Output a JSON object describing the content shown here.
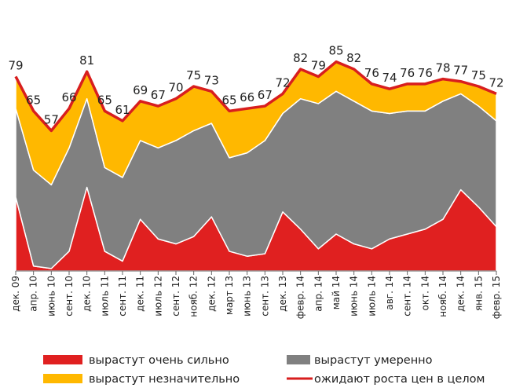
{
  "chart_data": {
    "type": "stacked_area",
    "categories": [
      "дек. 09",
      "апр. 10",
      "июнь 10",
      "сент. 10",
      "дек. 10",
      "июль 11",
      "сент. 11",
      "дек. 11",
      "июль 12",
      "сент. 12",
      "нояб. 12",
      "дек. 12",
      "март 13",
      "июнь 13",
      "сент. 13",
      "дек. 13",
      "февр. 14",
      "апр. 14",
      "май 14",
      "июнь 14",
      "июль 14",
      "авг. 14",
      "сент. 14",
      "окт. 14",
      "нояб. 14",
      "дек. 14",
      "янв. 15",
      "февр. 15"
    ],
    "ylim": [
      0,
      90
    ],
    "series": [
      {
        "name": "вырастут очень сильно",
        "color": "#e02020",
        "values": [
          30,
          2,
          1,
          8,
          34,
          8,
          4,
          21,
          13,
          11,
          14,
          22,
          8,
          6,
          7,
          24,
          17,
          9,
          15,
          11,
          9,
          13,
          15,
          17,
          21,
          33,
          26,
          18
        ]
      },
      {
        "name": "вырастут умеренно",
        "color": "#808080",
        "values": [
          36,
          39,
          34,
          42,
          36,
          34,
          34,
          32,
          37,
          42,
          43,
          38,
          38,
          42,
          46,
          40,
          53,
          59,
          58,
          58,
          56,
          51,
          50,
          48,
          48,
          39,
          41,
          43
        ]
      },
      {
        "name": "вырастут незначительно",
        "color": "#ffb800",
        "values": [
          13,
          24,
          22,
          16,
          11,
          23,
          23,
          16,
          17,
          17,
          18,
          13,
          19,
          18,
          14,
          8,
          12,
          11,
          12,
          13,
          11,
          10,
          11,
          11,
          9,
          5,
          8,
          11
        ]
      },
      {
        "name": "ожидают роста цен в целом",
        "color": "#d81e1e",
        "type": "line",
        "values": [
          79,
          65,
          57,
          66,
          81,
          65,
          61,
          69,
          67,
          70,
          75,
          73,
          65,
          66,
          67,
          72,
          82,
          79,
          85,
          82,
          76,
          74,
          76,
          76,
          78,
          77,
          75,
          72
        ]
      }
    ]
  }
}
